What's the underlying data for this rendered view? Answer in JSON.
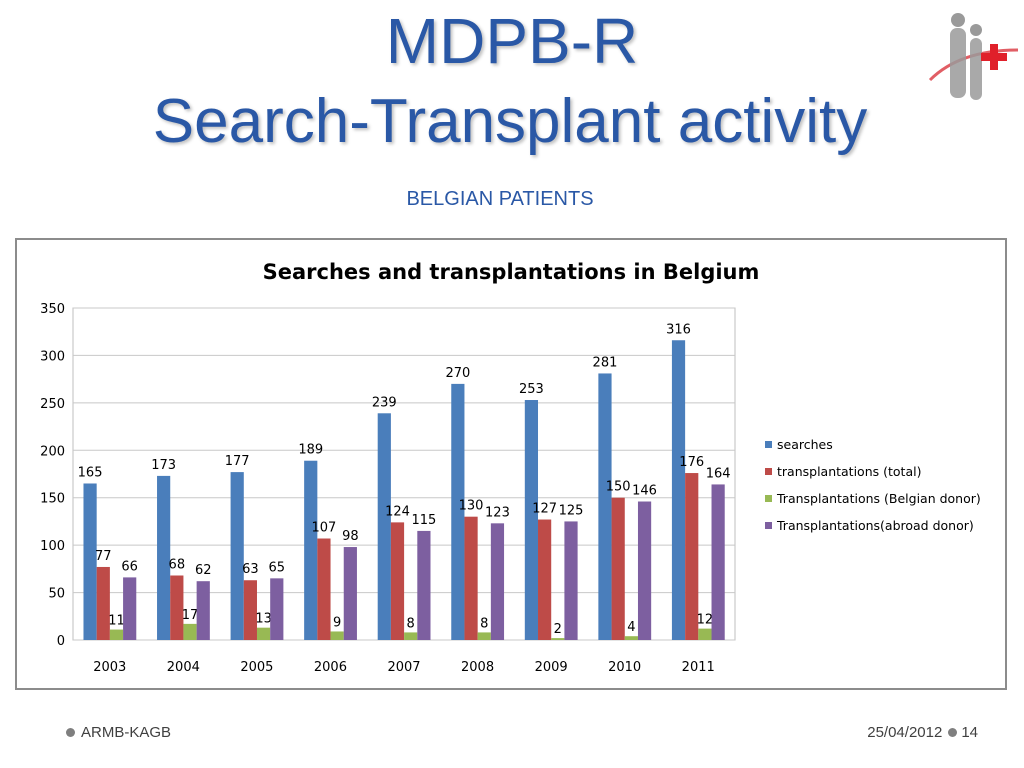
{
  "slide": {
    "title_line1": "MDPB-R",
    "title_line2": "Search-Transplant activity",
    "subtitle": "BELGIAN PATIENTS",
    "footer_left": "ARMB-KAGB",
    "footer_date": "25/04/2012",
    "footer_page": "14"
  },
  "colors": {
    "title": "#2a58a6",
    "searches": "#4a7ebb",
    "transplant_total": "#be4b48",
    "belgian_donor": "#98b954",
    "abroad_donor": "#7d5fa0"
  },
  "chart_data": {
    "type": "bar",
    "title": "Searches and transplantations in Belgium",
    "categories": [
      "2003",
      "2004",
      "2005",
      "2006",
      "2007",
      "2008",
      "2009",
      "2010",
      "2011"
    ],
    "series": [
      {
        "name": "searches",
        "color": "#4a7ebb",
        "values": [
          165,
          173,
          177,
          189,
          239,
          270,
          253,
          281,
          316
        ]
      },
      {
        "name": "transplantations (total)",
        "color": "#be4b48",
        "values": [
          77,
          68,
          63,
          107,
          124,
          130,
          127,
          150,
          176
        ]
      },
      {
        "name": "Transplantations (Belgian donor)",
        "color": "#98b954",
        "values": [
          11,
          17,
          13,
          9,
          8,
          8,
          2,
          4,
          12
        ]
      },
      {
        "name": "Transplantations(abroad donor)",
        "color": "#7d5fa0",
        "values": [
          66,
          62,
          65,
          98,
          115,
          123,
          125,
          146,
          164
        ]
      }
    ],
    "ylim": [
      0,
      350
    ],
    "yticks": [
      0,
      50,
      100,
      150,
      200,
      250,
      300,
      350
    ],
    "grid": true,
    "legend": "right"
  }
}
